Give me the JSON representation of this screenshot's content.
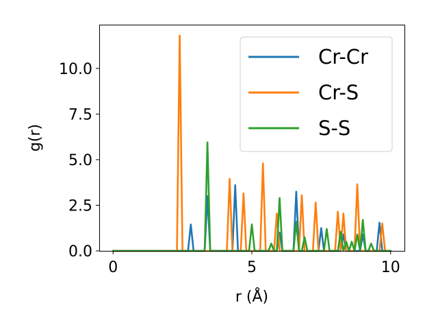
{
  "chart_data": {
    "type": "line",
    "title": "",
    "xlabel": "r (Å)",
    "ylabel": "g(r)",
    "xlim": [
      -0.5,
      10.5
    ],
    "ylim": [
      0,
      12.4
    ],
    "xticks": [
      0,
      5,
      10
    ],
    "xtick_labels": [
      "0",
      "5",
      "10"
    ],
    "yticks": [
      0,
      2.5,
      5,
      7.5,
      10
    ],
    "ytick_labels": [
      "0.0",
      "2.5",
      "5.0",
      "7.5",
      "10.0"
    ],
    "grid": false,
    "legend_position": "top-right",
    "series": [
      {
        "name": "Cr-Cr",
        "color": "#1f77b4",
        "x": [
          0,
          2.7,
          2.8,
          2.9,
          3.3,
          3.4,
          3.5,
          4.3,
          4.4,
          4.5,
          5.9,
          6.0,
          6.1,
          6.5,
          6.6,
          6.7,
          7.4,
          7.5,
          7.6,
          8.2,
          8.3,
          8.4,
          8.9,
          9.0,
          9.1,
          9.5,
          9.6,
          9.7,
          10.0
        ],
        "y": [
          0,
          0,
          1.45,
          0,
          0,
          3.0,
          0,
          0,
          3.6,
          0,
          0,
          1.0,
          0,
          0,
          3.25,
          0,
          0,
          1.25,
          0,
          0,
          0.9,
          0,
          0,
          0.9,
          0,
          0,
          1.55,
          0,
          0
        ]
      },
      {
        "name": "Cr-S",
        "color": "#ff7f0e",
        "x": [
          0,
          2.3,
          2.4,
          2.5,
          4.1,
          4.2,
          4.3,
          4.6,
          4.7,
          4.8,
          5.3,
          5.4,
          5.5,
          5.8,
          5.9,
          6.0,
          6.7,
          6.8,
          6.9,
          7.2,
          7.3,
          7.4,
          8.0,
          8.1,
          8.2,
          8.3,
          8.4,
          8.7,
          8.8,
          8.9,
          9.6,
          9.7,
          9.8,
          10.0
        ],
        "y": [
          0,
          0,
          11.8,
          0,
          0,
          3.95,
          0,
          0,
          3.15,
          0,
          0,
          4.8,
          0,
          0,
          2.05,
          0,
          0,
          3.05,
          0,
          0,
          2.65,
          0,
          0,
          2.15,
          0,
          2.05,
          0,
          0,
          3.65,
          0,
          0,
          1.5,
          0,
          0
        ]
      },
      {
        "name": "S-S",
        "color": "#2ca02c",
        "x": [
          0,
          3.3,
          3.4,
          3.5,
          4.9,
          5.0,
          5.1,
          5.6,
          5.7,
          5.8,
          5.9,
          6.0,
          6.1,
          6.5,
          6.6,
          6.7,
          6.8,
          6.9,
          7.0,
          7.6,
          7.7,
          7.8,
          8.1,
          8.2,
          8.3,
          8.4,
          8.5,
          8.6,
          8.7,
          8.8,
          8.9,
          9.0,
          9.1,
          9.2,
          9.3,
          9.4,
          9.5,
          10.0
        ],
        "y": [
          0,
          0,
          5.95,
          0,
          0,
          1.45,
          0,
          0,
          0.4,
          0,
          0,
          2.9,
          0,
          0,
          1.6,
          0,
          0,
          0.75,
          0,
          0,
          1.2,
          0,
          0,
          1.05,
          0,
          0.5,
          0,
          0.5,
          0,
          0.9,
          0,
          1.7,
          0,
          0,
          0.4,
          0,
          0,
          0
        ]
      }
    ]
  }
}
